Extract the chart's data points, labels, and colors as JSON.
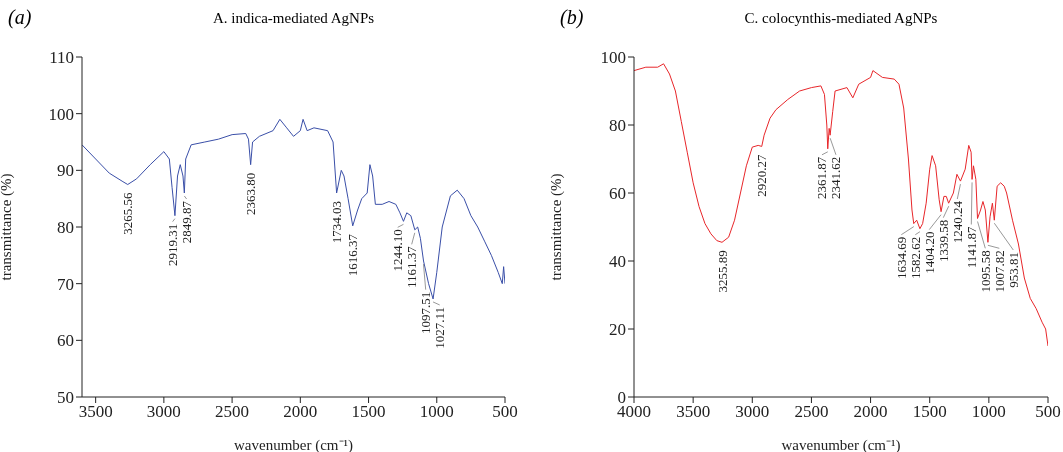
{
  "chart_data": [
    {
      "type": "line",
      "title": "A. indica-mediated AgNPs",
      "xlabel": "wavenumber (cm⁻¹)",
      "ylabel": "transmittance (%)",
      "xlim": [
        3600,
        500
      ],
      "ylim": [
        50,
        110
      ],
      "xticks": [
        3500,
        3000,
        2500,
        2000,
        1500,
        1000,
        500
      ],
      "yticks": [
        50,
        60,
        70,
        80,
        90,
        100,
        110
      ],
      "marker": "none",
      "line_style": "solid",
      "x": [
        3600,
        3500,
        3400,
        3300,
        3265,
        3200,
        3100,
        3000,
        2960,
        2940,
        2919,
        2900,
        2880,
        2860,
        2850,
        2840,
        2800,
        2700,
        2600,
        2500,
        2400,
        2380,
        2364,
        2350,
        2300,
        2200,
        2150,
        2100,
        2050,
        2000,
        1980,
        1950,
        1900,
        1800,
        1760,
        1734,
        1700,
        1680,
        1650,
        1616,
        1580,
        1550,
        1510,
        1490,
        1470,
        1450,
        1400,
        1350,
        1300,
        1270,
        1244,
        1220,
        1190,
        1161,
        1140,
        1120,
        1097,
        1060,
        1027,
        1000,
        960,
        900,
        850,
        800,
        750,
        700,
        650,
        600,
        550,
        520,
        510,
        500
      ],
      "series": [
        {
          "color": "#3a4fa8",
          "values": [
            94.5,
            92,
            89.5,
            88,
            87.5,
            88.5,
            91,
            93.3,
            92,
            87,
            82,
            89,
            91,
            89,
            86,
            92,
            94.5,
            95,
            95.5,
            96.3,
            96.5,
            95.5,
            91,
            95,
            96,
            97,
            99,
            97.5,
            96,
            97,
            99,
            97,
            97.5,
            97,
            95,
            86,
            90,
            89,
            85,
            80.2,
            83,
            85,
            86,
            91,
            89,
            84,
            84,
            84.5,
            84,
            82.5,
            81,
            82.5,
            82,
            79.5,
            80,
            78,
            74,
            70,
            67.3,
            72,
            80,
            85.5,
            86.5,
            85,
            82,
            80,
            77.5,
            75,
            72,
            70,
            73,
            70
          ]
        }
      ],
      "annotations": [
        "(a)",
        {
          "text": "3265.56",
          "x": 3265.56,
          "y": 87.5
        },
        {
          "text": "2919.31",
          "x": 2919.31,
          "y": 82
        },
        {
          "text": "2849.87",
          "x": 2849.87,
          "y": 86
        },
        {
          "text": "2363.80",
          "x": 2363.8,
          "y": 91
        },
        {
          "text": "1734.03",
          "x": 1734.03,
          "y": 86
        },
        {
          "text": "1616.37",
          "x": 1616.37,
          "y": 80.2
        },
        {
          "text": "1244.10",
          "x": 1244.1,
          "y": 81
        },
        {
          "text": "1161.37",
          "x": 1161.37,
          "y": 79.5
        },
        {
          "text": "1097.51",
          "x": 1097.51,
          "y": 74
        },
        {
          "text": "1027.11",
          "x": 1027.11,
          "y": 67.3
        }
      ]
    },
    {
      "type": "line",
      "title": "C. colocynthis-mediated AgNPs",
      "xlabel": "wavenumber (cm⁻¹)",
      "ylabel": "transmittance (%)",
      "xlim": [
        4000,
        500
      ],
      "ylim": [
        0,
        100
      ],
      "xticks": [
        4000,
        3500,
        3000,
        2500,
        2000,
        1500,
        1000,
        500
      ],
      "yticks": [
        0,
        20,
        40,
        60,
        80,
        100
      ],
      "marker": "none",
      "line_style": "solid",
      "x": [
        4000,
        3900,
        3800,
        3750,
        3700,
        3650,
        3600,
        3550,
        3500,
        3450,
        3400,
        3350,
        3300,
        3256,
        3200,
        3150,
        3100,
        3050,
        3000,
        2950,
        2920,
        2900,
        2850,
        2800,
        2700,
        2600,
        2500,
        2420,
        2390,
        2370,
        2362,
        2350,
        2342,
        2320,
        2300,
        2200,
        2150,
        2100,
        2000,
        1980,
        1900,
        1800,
        1760,
        1720,
        1680,
        1650,
        1635,
        1610,
        1583,
        1560,
        1530,
        1500,
        1480,
        1450,
        1420,
        1404,
        1380,
        1360,
        1340,
        1300,
        1270,
        1240,
        1200,
        1170,
        1150,
        1142,
        1130,
        1110,
        1096,
        1070,
        1050,
        1030,
        1008,
        990,
        970,
        954,
        930,
        900,
        870,
        850,
        800,
        750,
        700,
        650,
        600,
        550,
        520,
        500
      ],
      "series": [
        {
          "color": "#e8262a",
          "values": [
            96,
            97,
            97,
            98,
            95,
            90,
            81,
            72,
            63,
            56,
            51,
            48,
            46,
            45.5,
            47,
            52,
            60,
            68,
            73.5,
            74,
            73.7,
            77,
            82,
            84.5,
            87.5,
            90,
            91,
            91.5,
            89,
            80,
            73,
            79,
            77,
            84,
            90,
            91,
            88,
            92,
            94,
            96,
            94,
            93.5,
            92,
            85,
            70,
            55,
            51,
            52,
            49.5,
            51,
            57,
            67,
            71,
            68,
            58,
            54.5,
            59,
            59,
            57,
            60,
            65.5,
            63.5,
            67,
            74,
            72,
            64,
            68,
            64,
            52.5,
            55,
            57.5,
            55,
            45.5,
            53,
            57,
            52,
            62,
            63,
            62,
            60,
            52,
            45,
            35,
            29,
            26,
            22,
            20,
            15
          ]
        }
      ],
      "annotations": [
        "(b)",
        {
          "text": "3255.89",
          "x": 3255.89,
          "y": 45.5
        },
        {
          "text": "2920.27",
          "x": 2920.27,
          "y": 73.7
        },
        {
          "text": "2361.87",
          "x": 2361.87,
          "y": 73
        },
        {
          "text": "2341.62",
          "x": 2341.62,
          "y": 77
        },
        {
          "text": "1634.69",
          "x": 1634.69,
          "y": 51
        },
        {
          "text": "1582.62",
          "x": 1582.62,
          "y": 49.5
        },
        {
          "text": "1404.20",
          "x": 1404.2,
          "y": 54.5
        },
        {
          "text": "1339.58",
          "x": 1339.58,
          "y": 57
        },
        {
          "text": "1240.24",
          "x": 1240.24,
          "y": 63.5
        },
        {
          "text": "1141.87",
          "x": 1141.87,
          "y": 64
        },
        {
          "text": "1095.58",
          "x": 1095.58,
          "y": 52.5
        },
        {
          "text": "1007.82",
          "x": 1007.82,
          "y": 45.5
        },
        {
          "text": "953.81",
          "x": 953.81,
          "y": 52
        }
      ]
    }
  ]
}
